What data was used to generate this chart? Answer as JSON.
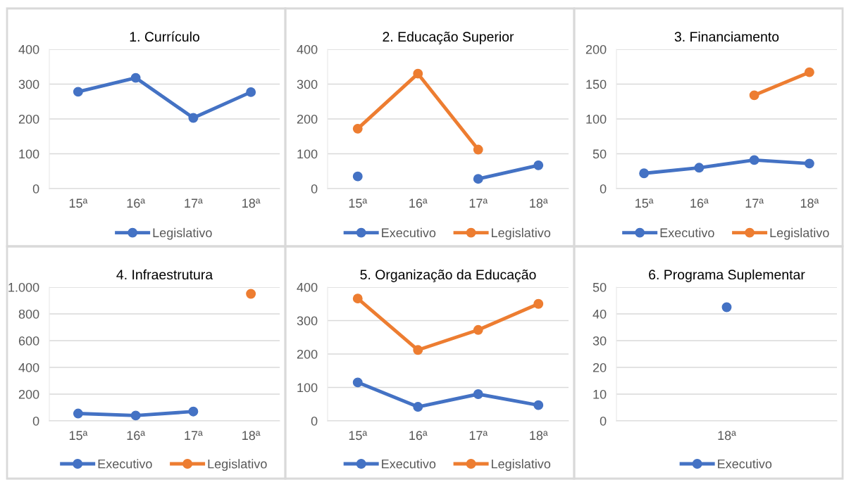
{
  "chart_data": [
    {
      "type": "line",
      "title": "1. Currículo",
      "categories": [
        "15ª",
        "16ª",
        "17ª",
        "18ª"
      ],
      "ylim": [
        0,
        400
      ],
      "yticks": [
        0,
        100,
        200,
        300,
        400
      ],
      "grid": "y",
      "legend": "bottom",
      "marker": "circle",
      "line_style": "solid",
      "series": [
        {
          "name": "Legislativo",
          "color": "#4472c4",
          "values": [
            278,
            318,
            203,
            277
          ]
        }
      ]
    },
    {
      "type": "line",
      "title": "2. Educação Superior",
      "categories": [
        "15ª",
        "16ª",
        "17ª",
        "18ª"
      ],
      "ylim": [
        0,
        400
      ],
      "yticks": [
        0,
        100,
        200,
        300,
        400
      ],
      "grid": "y",
      "legend": "bottom",
      "marker": "circle",
      "line_style": "solid",
      "series": [
        {
          "name": "Executivo",
          "color": "#4472c4",
          "values": [
            35,
            null,
            28,
            67
          ]
        },
        {
          "name": "Legislativo",
          "color": "#ed7d31",
          "values": [
            172,
            330,
            112,
            null
          ]
        }
      ]
    },
    {
      "type": "line",
      "title": "3. Financiamento",
      "categories": [
        "15ª",
        "16ª",
        "17ª",
        "18ª"
      ],
      "ylim": [
        0,
        200
      ],
      "yticks": [
        0,
        50,
        100,
        150,
        200
      ],
      "grid": "y",
      "legend": "bottom",
      "marker": "circle",
      "line_style": "solid",
      "series": [
        {
          "name": "Executivo",
          "color": "#4472c4",
          "values": [
            22,
            30,
            41,
            36
          ]
        },
        {
          "name": "Legislativo",
          "color": "#ed7d31",
          "values": [
            null,
            null,
            134,
            167
          ]
        }
      ]
    },
    {
      "type": "line",
      "title": "4. Infraestrutura",
      "categories": [
        "15ª",
        "16ª",
        "17ª",
        "18ª"
      ],
      "ylim": [
        0,
        1000
      ],
      "yticks": [
        0,
        200,
        400,
        600,
        800,
        {
          "value": 1000,
          "label": "1.000"
        }
      ],
      "grid": "y",
      "legend": "bottom",
      "marker": "circle",
      "line_style": "solid",
      "series": [
        {
          "name": "Executivo",
          "color": "#4472c4",
          "values": [
            55,
            40,
            70,
            null
          ]
        },
        {
          "name": "Legislativo",
          "color": "#ed7d31",
          "values": [
            null,
            null,
            null,
            950
          ]
        }
      ]
    },
    {
      "type": "line",
      "title": "5. Organização da Educação",
      "categories": [
        "15ª",
        "16ª",
        "17ª",
        "18ª"
      ],
      "ylim": [
        0,
        400
      ],
      "yticks": [
        0,
        100,
        200,
        300,
        400
      ],
      "grid": "y",
      "legend": "bottom",
      "marker": "circle",
      "line_style": "solid",
      "series": [
        {
          "name": "Executivo",
          "color": "#4472c4",
          "values": [
            115,
            42,
            80,
            47
          ]
        },
        {
          "name": "Legislativo",
          "color": "#ed7d31",
          "values": [
            366,
            212,
            272,
            350
          ]
        }
      ]
    },
    {
      "type": "line",
      "title": "6. Programa Suplementar",
      "categories": [
        "18ª"
      ],
      "ylim": [
        0,
        50
      ],
      "yticks": [
        0,
        10,
        20,
        30,
        40,
        50
      ],
      "grid": "y",
      "legend": "bottom",
      "marker": "circle",
      "line_style": "solid",
      "series": [
        {
          "name": "Executivo",
          "color": "#4472c4",
          "values": [
            42.5
          ]
        }
      ]
    }
  ]
}
